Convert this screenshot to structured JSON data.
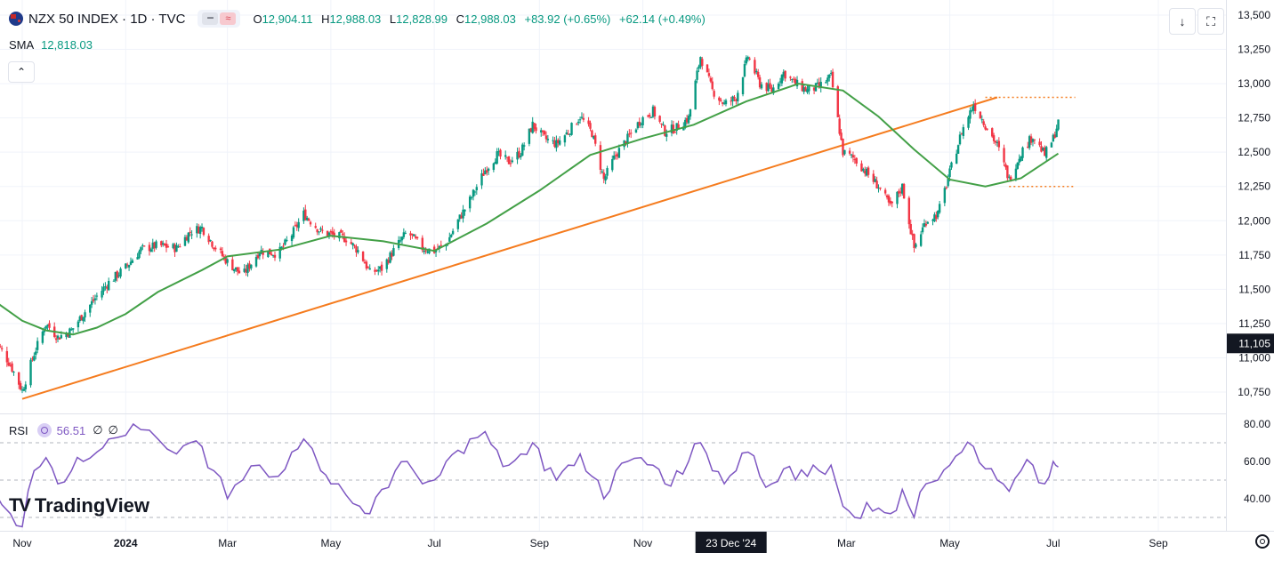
{
  "header": {
    "title": "NZX 50 INDEX · 1D · TVC",
    "open_key": "O",
    "open": "12,904.11",
    "high_key": "H",
    "high": "12,988.03",
    "low_key": "L",
    "low": "12,828.99",
    "close_key": "C",
    "close": "12,988.03",
    "change": "+83.92 (+0.65%)",
    "change2": "+62.14 (+0.49%)",
    "sma_label": "SMA",
    "sma_value": "12,818.03",
    "collapse_glyph": "⌃",
    "pill_minus": "━",
    "pill_wave": "≈"
  },
  "toolbar": {
    "download_icon": "↓",
    "fullscreen_icon": "⛶"
  },
  "rsi": {
    "label": "RSI",
    "value": "56.51",
    "extra1": "∅",
    "extra2": "∅"
  },
  "logo": {
    "mark": "TV",
    "text": "TradingView"
  },
  "colors": {
    "up": "#089981",
    "down": "#f23645",
    "sma": "#43a047",
    "trendline": "#f57c1f",
    "rsi": "#7e57c2",
    "grid": "#f0f3fa",
    "axis_text": "#131722",
    "dark_label": "#131722"
  },
  "chart_data": [
    {
      "type": "candlestick",
      "title": "NZX 50 INDEX · 1D · TVC",
      "x_ticks": [
        "Nov",
        "2024",
        "Mar",
        "May",
        "Jul",
        "Sep",
        "Nov",
        "23 Dec '24",
        "Mar",
        "May",
        "Jul",
        "Sep"
      ],
      "x_tick_dates": [
        "2023-11-01",
        "2024-01-01",
        "2024-03-01",
        "2024-05-01",
        "2024-07-01",
        "2024-09-01",
        "2024-11-01",
        "2024-12-23",
        "2025-03-01",
        "2025-05-01",
        "2025-07-01",
        "2025-09-01"
      ],
      "crosshair_date_label": "23 Dec '24",
      "crosshair_date": "2024-12-23",
      "y_ticks": [
        "13,500",
        "13,250",
        "13,000",
        "12,750",
        "12,500",
        "12,250",
        "12,000",
        "11,750",
        "11,500",
        "11,250",
        "11,000",
        "10,750"
      ],
      "ylim": [
        10625,
        13500
      ],
      "crosshair_price_label": "11,105",
      "crosshair_price": 11105,
      "series": [
        {
          "name": "Close",
          "points": [
            [
              "2023-10-15",
              11150
            ],
            [
              "2023-10-25",
              10950
            ],
            [
              "2023-11-01",
              10760
            ],
            [
              "2023-11-08",
              11030
            ],
            [
              "2023-11-15",
              11250
            ],
            [
              "2023-11-22",
              11150
            ],
            [
              "2023-11-30",
              11200
            ],
            [
              "2023-12-07",
              11320
            ],
            [
              "2023-12-15",
              11450
            ],
            [
              "2023-12-22",
              11550
            ],
            [
              "2024-01-01",
              11660
            ],
            [
              "2024-01-10",
              11790
            ],
            [
              "2024-01-20",
              11820
            ],
            [
              "2024-01-31",
              11800
            ],
            [
              "2024-02-08",
              11920
            ],
            [
              "2024-02-15",
              11950
            ],
            [
              "2024-02-22",
              11820
            ],
            [
              "2024-03-01",
              11700
            ],
            [
              "2024-03-10",
              11600
            ],
            [
              "2024-03-20",
              11780
            ],
            [
              "2024-03-31",
              11760
            ],
            [
              "2024-04-08",
              11900
            ],
            [
              "2024-04-15",
              12050
            ],
            [
              "2024-04-25",
              11920
            ],
            [
              "2024-05-01",
              11900
            ],
            [
              "2024-05-10",
              11870
            ],
            [
              "2024-05-18",
              11770
            ],
            [
              "2024-05-24",
              11620
            ],
            [
              "2024-05-31",
              11650
            ],
            [
              "2024-06-08",
              11800
            ],
            [
              "2024-06-15",
              11920
            ],
            [
              "2024-06-24",
              11800
            ],
            [
              "2024-07-01",
              11780
            ],
            [
              "2024-07-08",
              11830
            ],
            [
              "2024-07-15",
              12000
            ],
            [
              "2024-07-22",
              12150
            ],
            [
              "2024-07-31",
              12370
            ],
            [
              "2024-08-07",
              12480
            ],
            [
              "2024-08-14",
              12430
            ],
            [
              "2024-08-21",
              12500
            ],
            [
              "2024-08-28",
              12700
            ],
            [
              "2024-09-04",
              12600
            ],
            [
              "2024-09-11",
              12560
            ],
            [
              "2024-09-18",
              12650
            ],
            [
              "2024-09-25",
              12760
            ],
            [
              "2024-10-02",
              12640
            ],
            [
              "2024-10-09",
              12300
            ],
            [
              "2024-10-16",
              12480
            ],
            [
              "2024-10-23",
              12600
            ],
            [
              "2024-10-31",
              12740
            ],
            [
              "2024-11-07",
              12800
            ],
            [
              "2024-11-14",
              12650
            ],
            [
              "2024-11-21",
              12680
            ],
            [
              "2024-11-28",
              12750
            ],
            [
              "2024-12-05",
              13200
            ],
            [
              "2024-12-12",
              12950
            ],
            [
              "2024-12-19",
              12850
            ],
            [
              "2024-12-26",
              12900
            ],
            [
              "2025-01-02",
              13200
            ],
            [
              "2025-01-09",
              13000
            ],
            [
              "2025-01-16",
              12950
            ],
            [
              "2025-01-23",
              13080
            ],
            [
              "2025-01-30",
              13000
            ],
            [
              "2025-02-06",
              12950
            ],
            [
              "2025-02-13",
              12980
            ],
            [
              "2025-02-20",
              13050
            ],
            [
              "2025-02-27",
              12500
            ],
            [
              "2025-03-06",
              12450
            ],
            [
              "2025-03-13",
              12350
            ],
            [
              "2025-03-20",
              12250
            ],
            [
              "2025-03-27",
              12100
            ],
            [
              "2025-04-03",
              12250
            ],
            [
              "2025-04-10",
              11800
            ],
            [
              "2025-04-17",
              12000
            ],
            [
              "2025-04-24",
              12050
            ],
            [
              "2025-05-01",
              12350
            ],
            [
              "2025-05-08",
              12650
            ],
            [
              "2025-05-15",
              12850
            ],
            [
              "2025-05-22",
              12700
            ],
            [
              "2025-05-29",
              12550
            ],
            [
              "2025-06-05",
              12300
            ],
            [
              "2025-06-12",
              12500
            ],
            [
              "2025-06-19",
              12620
            ],
            [
              "2025-06-26",
              12480
            ],
            [
              "2025-07-01",
              12600
            ],
            [
              "2025-07-04",
              12720
            ]
          ]
        },
        {
          "name": "SMA",
          "points": [
            [
              "2023-10-15",
              11420
            ],
            [
              "2023-11-01",
              11270
            ],
            [
              "2023-11-15",
              11200
            ],
            [
              "2023-12-01",
              11170
            ],
            [
              "2023-12-15",
              11220
            ],
            [
              "2024-01-01",
              11320
            ],
            [
              "2024-01-20",
              11480
            ],
            [
              "2024-02-15",
              11640
            ],
            [
              "2024-03-01",
              11740
            ],
            [
              "2024-04-01",
              11790
            ],
            [
              "2024-05-01",
              11890
            ],
            [
              "2024-06-01",
              11850
            ],
            [
              "2024-07-01",
              11780
            ],
            [
              "2024-08-01",
              11980
            ],
            [
              "2024-09-01",
              12220
            ],
            [
              "2024-10-01",
              12480
            ],
            [
              "2024-11-01",
              12600
            ],
            [
              "2024-12-01",
              12700
            ],
            [
              "2025-01-01",
              12870
            ],
            [
              "2025-02-01",
              13000
            ],
            [
              "2025-02-27",
              12950
            ],
            [
              "2025-03-20",
              12760
            ],
            [
              "2025-04-10",
              12520
            ],
            [
              "2025-05-01",
              12300
            ],
            [
              "2025-05-22",
              12250
            ],
            [
              "2025-06-12",
              12310
            ],
            [
              "2025-07-04",
              12490
            ]
          ]
        },
        {
          "name": "Trendline",
          "points": [
            [
              "2023-11-01",
              10700
            ],
            [
              "2025-05-29",
              12900
            ]
          ]
        },
        {
          "name": "Range high",
          "points": [
            [
              "2025-05-22",
              12900
            ],
            [
              "2025-07-14",
              12900
            ]
          ]
        },
        {
          "name": "Range low",
          "points": [
            [
              "2025-06-05",
              12250
            ],
            [
              "2025-07-14",
              12250
            ]
          ]
        }
      ]
    },
    {
      "type": "line",
      "title": "RSI",
      "y_ticks": [
        "80.00",
        "60.00",
        "40.00"
      ],
      "ylim": [
        25,
        85
      ],
      "reference_lines": [
        70,
        50,
        30
      ],
      "series": [
        {
          "name": "RSI",
          "points": [
            [
              "2023-10-15",
              45
            ],
            [
              "2023-10-25",
              32
            ],
            [
              "2023-11-01",
              25
            ],
            [
              "2023-11-08",
              55
            ],
            [
              "2023-11-15",
              62
            ],
            [
              "2023-11-22",
              48
            ],
            [
              "2023-11-30",
              55
            ],
            [
              "2023-12-07",
              60
            ],
            [
              "2023-12-15",
              65
            ],
            [
              "2023-12-22",
              72
            ],
            [
              "2024-01-01",
              74
            ],
            [
              "2024-01-10",
              77
            ],
            [
              "2024-01-20",
              72
            ],
            [
              "2024-01-31",
              64
            ],
            [
              "2024-02-08",
              70
            ],
            [
              "2024-02-15",
              68
            ],
            [
              "2024-02-22",
              55
            ],
            [
              "2024-03-01",
              40
            ],
            [
              "2024-03-10",
              50
            ],
            [
              "2024-03-20",
              58
            ],
            [
              "2024-03-31",
              52
            ],
            [
              "2024-04-08",
              65
            ],
            [
              "2024-04-15",
              72
            ],
            [
              "2024-04-25",
              55
            ],
            [
              "2024-05-01",
              48
            ],
            [
              "2024-05-10",
              42
            ],
            [
              "2024-05-18",
              36
            ],
            [
              "2024-05-24",
              32
            ],
            [
              "2024-05-31",
              45
            ],
            [
              "2024-06-08",
              55
            ],
            [
              "2024-06-15",
              60
            ],
            [
              "2024-06-24",
              48
            ],
            [
              "2024-07-01",
              50
            ],
            [
              "2024-07-08",
              60
            ],
            [
              "2024-07-15",
              66
            ],
            [
              "2024-07-22",
              72
            ],
            [
              "2024-07-31",
              76
            ],
            [
              "2024-08-07",
              66
            ],
            [
              "2024-08-14",
              58
            ],
            [
              "2024-08-21",
              64
            ],
            [
              "2024-08-28",
              70
            ],
            [
              "2024-09-04",
              55
            ],
            [
              "2024-09-11",
              50
            ],
            [
              "2024-09-18",
              58
            ],
            [
              "2024-09-25",
              64
            ],
            [
              "2024-10-02",
              52
            ],
            [
              "2024-10-09",
              40
            ],
            [
              "2024-10-16",
              55
            ],
            [
              "2024-10-23",
              60
            ],
            [
              "2024-10-31",
              62
            ],
            [
              "2024-11-07",
              58
            ],
            [
              "2024-11-14",
              48
            ],
            [
              "2024-11-21",
              55
            ],
            [
              "2024-11-28",
              60
            ],
            [
              "2024-12-05",
              70
            ],
            [
              "2024-12-12",
              55
            ],
            [
              "2024-12-19",
              48
            ],
            [
              "2024-12-26",
              55
            ],
            [
              "2025-01-02",
              65
            ],
            [
              "2025-01-09",
              52
            ],
            [
              "2025-01-16",
              48
            ],
            [
              "2025-01-23",
              56
            ],
            [
              "2025-01-30",
              50
            ],
            [
              "2025-02-06",
              52
            ],
            [
              "2025-02-13",
              55
            ],
            [
              "2025-02-20",
              58
            ],
            [
              "2025-02-27",
              36
            ],
            [
              "2025-03-06",
              30
            ],
            [
              "2025-03-13",
              38
            ],
            [
              "2025-03-20",
              35
            ],
            [
              "2025-03-27",
              32
            ],
            [
              "2025-04-03",
              45
            ],
            [
              "2025-04-10",
              30
            ],
            [
              "2025-04-17",
              48
            ],
            [
              "2025-04-24",
              50
            ],
            [
              "2025-05-01",
              58
            ],
            [
              "2025-05-08",
              65
            ],
            [
              "2025-05-15",
              68
            ],
            [
              "2025-05-22",
              56
            ],
            [
              "2025-05-29",
              50
            ],
            [
              "2025-06-05",
              44
            ],
            [
              "2025-06-12",
              55
            ],
            [
              "2025-06-19",
              58
            ],
            [
              "2025-06-26",
              48
            ],
            [
              "2025-07-01",
              60
            ],
            [
              "2025-07-04",
              57
            ]
          ]
        }
      ]
    }
  ]
}
